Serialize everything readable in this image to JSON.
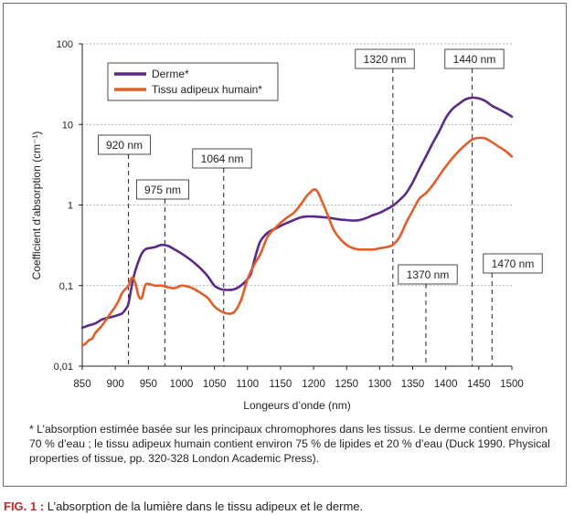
{
  "chart_data": {
    "type": "line",
    "xlabel": "Longeurs d’onde (nm)",
    "ylabel": "Coefficient d’absorption (cm⁻¹)",
    "yscale": "log",
    "xlim": [
      850,
      1500
    ],
    "ylim": [
      0.01,
      100
    ],
    "x_ticks": [
      850,
      900,
      950,
      1000,
      1050,
      1100,
      1150,
      1200,
      1250,
      1300,
      1350,
      1400,
      1450,
      1500
    ],
    "x_tick_labels": [
      "850",
      "900",
      "950",
      "1000",
      "1050",
      "1100",
      "1150",
      "1200",
      "1250",
      "1300",
      "1350",
      "1400",
      "1450",
      "1500"
    ],
    "y_ticks": [
      0.01,
      0.1,
      1,
      10,
      100
    ],
    "y_tick_labels": [
      "0,01",
      "0,1",
      "1",
      "10",
      "100"
    ],
    "grid": "horizontal dashed",
    "legend_position": "top-left",
    "series": [
      {
        "name": "Derme*",
        "color": "#5b2a86",
        "x": [
          850,
          860,
          870,
          880,
          890,
          900,
          910,
          915,
          920,
          925,
          930,
          935,
          940,
          945,
          950,
          960,
          970,
          980,
          990,
          1000,
          1010,
          1020,
          1030,
          1040,
          1050,
          1060,
          1070,
          1080,
          1090,
          1100,
          1105,
          1110,
          1115,
          1120,
          1130,
          1140,
          1150,
          1160,
          1170,
          1180,
          1190,
          1200,
          1210,
          1220,
          1230,
          1240,
          1250,
          1260,
          1270,
          1280,
          1290,
          1300,
          1310,
          1320,
          1330,
          1340,
          1350,
          1360,
          1370,
          1380,
          1390,
          1400,
          1410,
          1420,
          1430,
          1440,
          1450,
          1460,
          1470,
          1480,
          1490,
          1500
        ],
        "y": [
          0.03,
          0.032,
          0.034,
          0.038,
          0.04,
          0.042,
          0.045,
          0.05,
          0.06,
          0.1,
          0.15,
          0.2,
          0.25,
          0.28,
          0.29,
          0.3,
          0.32,
          0.31,
          0.28,
          0.25,
          0.22,
          0.19,
          0.16,
          0.13,
          0.1,
          0.09,
          0.088,
          0.09,
          0.1,
          0.12,
          0.14,
          0.2,
          0.28,
          0.36,
          0.45,
          0.5,
          0.55,
          0.6,
          0.65,
          0.7,
          0.72,
          0.72,
          0.71,
          0.7,
          0.68,
          0.66,
          0.65,
          0.64,
          0.65,
          0.69,
          0.75,
          0.8,
          0.88,
          0.98,
          1.15,
          1.4,
          1.9,
          2.8,
          4.0,
          5.8,
          8.2,
          12.0,
          15.5,
          18.0,
          20.5,
          21.5,
          21.0,
          19.5,
          17.0,
          15.5,
          14.0,
          12.5
        ]
      },
      {
        "name": "Tissu adipeux humain*",
        "color": "#e05e2a",
        "x": [
          850,
          855,
          860,
          865,
          870,
          880,
          890,
          900,
          905,
          910,
          915,
          920,
          925,
          930,
          935,
          940,
          945,
          950,
          960,
          970,
          980,
          990,
          1000,
          1010,
          1020,
          1030,
          1040,
          1050,
          1060,
          1070,
          1080,
          1090,
          1100,
          1110,
          1120,
          1130,
          1140,
          1150,
          1160,
          1170,
          1180,
          1190,
          1200,
          1205,
          1210,
          1220,
          1230,
          1240,
          1250,
          1260,
          1270,
          1280,
          1290,
          1300,
          1310,
          1320,
          1330,
          1340,
          1350,
          1360,
          1370,
          1380,
          1390,
          1400,
          1410,
          1420,
          1430,
          1440,
          1450,
          1460,
          1470,
          1480,
          1490,
          1500
        ],
        "y": [
          0.018,
          0.019,
          0.021,
          0.022,
          0.026,
          0.032,
          0.042,
          0.055,
          0.065,
          0.08,
          0.09,
          0.1,
          0.125,
          0.11,
          0.075,
          0.07,
          0.1,
          0.105,
          0.1,
          0.1,
          0.095,
          0.093,
          0.1,
          0.097,
          0.09,
          0.08,
          0.07,
          0.055,
          0.048,
          0.045,
          0.047,
          0.065,
          0.12,
          0.18,
          0.25,
          0.4,
          0.5,
          0.6,
          0.7,
          0.8,
          1.0,
          1.3,
          1.55,
          1.5,
          1.25,
          0.8,
          0.5,
          0.38,
          0.32,
          0.29,
          0.28,
          0.28,
          0.28,
          0.29,
          0.3,
          0.32,
          0.4,
          0.6,
          0.85,
          1.2,
          1.4,
          1.75,
          2.3,
          3.0,
          3.8,
          4.7,
          5.6,
          6.5,
          6.8,
          6.7,
          6.0,
          5.3,
          4.7,
          4.0
        ]
      }
    ],
    "annotations": [
      {
        "label": "920 nm",
        "x": 920
      },
      {
        "label": "975 nm",
        "x": 975
      },
      {
        "label": "1064 nm",
        "x": 1064
      },
      {
        "label": "1320 nm",
        "x": 1320
      },
      {
        "label": "1370 nm",
        "x": 1370
      },
      {
        "label": "1440 nm",
        "x": 1440
      },
      {
        "label": "1470 nm",
        "x": 1470
      }
    ]
  },
  "footnote": "* L’absorption estimée basée sur les principaux chromophores dans les tissus. Le derme contient environ 70 % d’eau ; le tissu adipeux humain contient environ 75 % de lipides et 20 % d’eau (Duck 1990. Physical properties of tissue, pp. 320-328 London Academic Press).",
  "caption": {
    "fig_label": "FIG. 1 :",
    "text": "L’absorption de la lumière dans le tissu adipeux et le derme."
  }
}
